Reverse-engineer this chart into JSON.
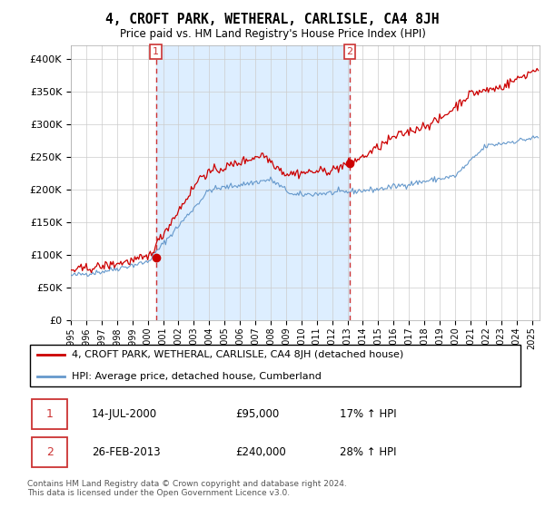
{
  "title": "4, CROFT PARK, WETHERAL, CARLISLE, CA4 8JH",
  "subtitle": "Price paid vs. HM Land Registry's House Price Index (HPI)",
  "ylim": [
    0,
    420000
  ],
  "yticks": [
    0,
    50000,
    100000,
    150000,
    200000,
    250000,
    300000,
    350000,
    400000
  ],
  "xlim_start": 1995.0,
  "xlim_end": 2025.5,
  "red_line_color": "#cc0000",
  "blue_line_color": "#6699cc",
  "shaded_color": "#ddeeff",
  "dashed_color": "#cc3333",
  "purchase1_date": 2000.54,
  "purchase1_price": 95000,
  "purchase2_date": 2013.15,
  "purchase2_price": 240000,
  "legend_red": "4, CROFT PARK, WETHERAL, CARLISLE, CA4 8JH (detached house)",
  "legend_blue": "HPI: Average price, detached house, Cumberland",
  "label1_date": "14-JUL-2000",
  "label1_price": "£95,000",
  "label1_hpi": "17% ↑ HPI",
  "label2_date": "26-FEB-2013",
  "label2_price": "£240,000",
  "label2_hpi": "28% ↑ HPI",
  "footer1": "Contains HM Land Registry data © Crown copyright and database right 2024.",
  "footer2": "This data is licensed under the Open Government Licence v3.0.",
  "background_color": "#ffffff",
  "grid_color": "#cccccc"
}
